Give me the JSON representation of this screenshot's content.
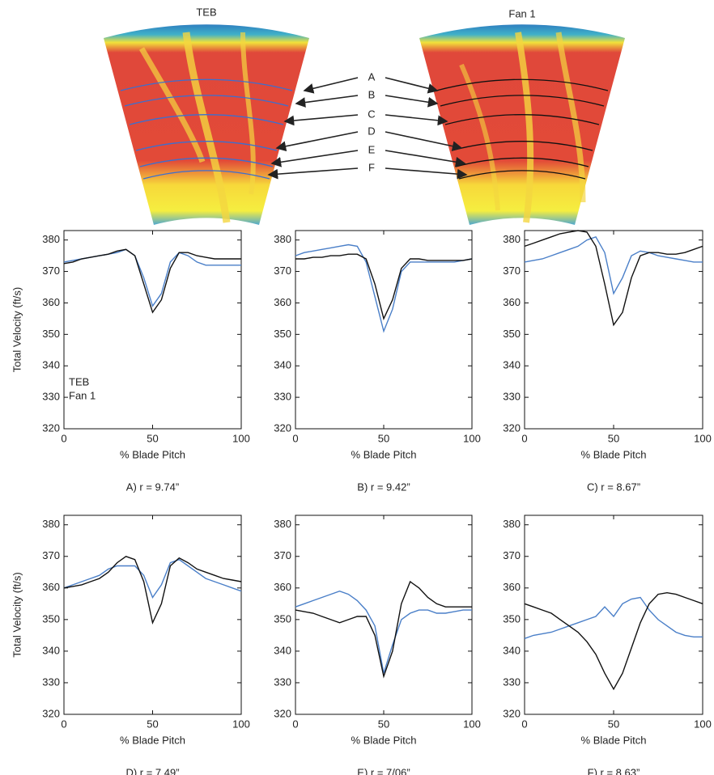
{
  "figure": {
    "left_title": "TEB",
    "right_title": "Fan 1",
    "cut_labels": [
      "A",
      "B",
      "C",
      "D",
      "E",
      "F"
    ]
  },
  "chart_data": [
    {
      "type": "line",
      "y_label": "Total Velocity (ft/s)",
      "x_label": "% Blade Pitch",
      "caption": "A) r = 9.74”",
      "legend": true,
      "x": [
        0,
        5,
        10,
        15,
        20,
        25,
        30,
        35,
        40,
        45,
        50,
        55,
        60,
        65,
        70,
        75,
        80,
        85,
        90,
        95,
        100
      ],
      "series": [
        {
          "name": "TEB",
          "color": "#4a7fc8",
          "values": [
            373,
            373.5,
            374,
            374.5,
            375,
            375.5,
            376,
            377,
            375,
            368,
            359,
            363,
            373,
            376,
            375,
            373,
            372,
            372,
            372,
            372,
            372
          ]
        },
        {
          "name": "Fan 1",
          "color": "#111111",
          "values": [
            372.5,
            373,
            374,
            374.5,
            375,
            375.5,
            376.5,
            377,
            375,
            366,
            357,
            361,
            371,
            376,
            376,
            375,
            374.5,
            374,
            374,
            374,
            374
          ]
        }
      ],
      "xlim": [
        0,
        100
      ],
      "xticks": [
        0,
        50,
        100
      ],
      "ylim": [
        320,
        383
      ],
      "yticks": [
        320,
        330,
        340,
        350,
        360,
        370,
        380
      ]
    },
    {
      "type": "line",
      "x_label": "% Blade Pitch",
      "caption": "B) r = 9.42”",
      "legend": false,
      "x": [
        0,
        5,
        10,
        15,
        20,
        25,
        30,
        35,
        40,
        45,
        50,
        55,
        60,
        65,
        70,
        75,
        80,
        85,
        90,
        95,
        100
      ],
      "series": [
        {
          "color": "#4a7fc8",
          "values": [
            375,
            376,
            376.5,
            377,
            377.5,
            378,
            378.5,
            378,
            373,
            362,
            351,
            358,
            370,
            373,
            373,
            373,
            373,
            373,
            373,
            373.5,
            374
          ]
        },
        {
          "color": "#111111",
          "values": [
            374,
            374,
            374.5,
            374.5,
            375,
            375,
            375.5,
            375.5,
            374,
            366,
            355,
            361,
            371,
            374,
            374,
            373.5,
            373.5,
            373.5,
            373.5,
            373.5,
            374
          ]
        }
      ],
      "xlim": [
        0,
        100
      ],
      "xticks": [
        0,
        50,
        100
      ],
      "ylim": [
        320,
        383
      ],
      "yticks": [
        320,
        330,
        340,
        350,
        360,
        370,
        380
      ]
    },
    {
      "type": "line",
      "x_label": "% Blade Pitch",
      "caption": "C) r = 8.67”",
      "legend": false,
      "x": [
        0,
        5,
        10,
        15,
        20,
        25,
        30,
        35,
        40,
        45,
        50,
        55,
        60,
        65,
        70,
        75,
        80,
        85,
        90,
        95,
        100
      ],
      "series": [
        {
          "color": "#4a7fc8",
          "values": [
            373,
            373.5,
            374,
            375,
            376,
            377,
            378,
            380,
            381,
            376,
            363,
            368,
            375,
            376.5,
            376,
            375,
            374.5,
            374,
            373.5,
            373,
            373
          ]
        },
        {
          "color": "#111111",
          "values": [
            378,
            379,
            380,
            381,
            382,
            382.5,
            383,
            382.5,
            378,
            366,
            353,
            357,
            368,
            375,
            376,
            376,
            375.5,
            375.5,
            376,
            377,
            378
          ]
        }
      ],
      "xlim": [
        0,
        100
      ],
      "xticks": [
        0,
        50,
        100
      ],
      "ylim": [
        320,
        383
      ],
      "yticks": [
        320,
        330,
        340,
        350,
        360,
        370,
        380
      ]
    },
    {
      "type": "line",
      "y_label": "Total Velocity (ft/s)",
      "x_label": "% Blade Pitch",
      "caption": "D) r = 7.49”",
      "legend": false,
      "x": [
        0,
        5,
        10,
        15,
        20,
        25,
        30,
        35,
        40,
        45,
        50,
        55,
        60,
        65,
        70,
        75,
        80,
        85,
        90,
        95,
        100
      ],
      "series": [
        {
          "color": "#4a7fc8",
          "values": [
            360,
            361,
            362,
            363,
            364,
            366,
            367,
            367,
            367,
            364,
            357,
            361,
            368,
            369,
            367,
            365,
            363,
            362,
            361,
            360,
            359
          ]
        },
        {
          "color": "#111111",
          "values": [
            360,
            360.5,
            361,
            362,
            363,
            365,
            368,
            370,
            369,
            362,
            349,
            355,
            367,
            369.5,
            368,
            366,
            365,
            364,
            363,
            362.5,
            362
          ]
        }
      ],
      "xlim": [
        0,
        100
      ],
      "xticks": [
        0,
        50,
        100
      ],
      "ylim": [
        320,
        383
      ],
      "yticks": [
        320,
        330,
        340,
        350,
        360,
        370,
        380
      ]
    },
    {
      "type": "line",
      "x_label": "% Blade Pitch",
      "caption": "E) r = 7/06”",
      "legend": false,
      "x": [
        0,
        5,
        10,
        15,
        20,
        25,
        30,
        35,
        40,
        45,
        50,
        55,
        60,
        65,
        70,
        75,
        80,
        85,
        90,
        95,
        100
      ],
      "series": [
        {
          "color": "#4a7fc8",
          "values": [
            354,
            355,
            356,
            357,
            358,
            359,
            358,
            356,
            353,
            348,
            333,
            342,
            350,
            352,
            353,
            353,
            352,
            352,
            352.5,
            353,
            353
          ]
        },
        {
          "color": "#111111",
          "values": [
            353,
            352.5,
            352,
            351,
            350,
            349,
            350,
            351,
            351,
            345,
            332,
            340,
            355,
            362,
            360,
            357,
            355,
            354,
            354,
            354,
            354
          ]
        }
      ],
      "xlim": [
        0,
        100
      ],
      "xticks": [
        0,
        50,
        100
      ],
      "ylim": [
        320,
        383
      ],
      "yticks": [
        320,
        330,
        340,
        350,
        360,
        370,
        380
      ]
    },
    {
      "type": "line",
      "x_label": "% Blade Pitch",
      "caption": "F) r = 8.63”",
      "legend": false,
      "x": [
        0,
        5,
        10,
        15,
        20,
        25,
        30,
        35,
        40,
        45,
        50,
        55,
        60,
        65,
        70,
        75,
        80,
        85,
        90,
        95,
        100
      ],
      "series": [
        {
          "color": "#4a7fc8",
          "values": [
            344,
            345,
            345.5,
            346,
            347,
            348,
            349,
            350,
            351,
            354,
            351,
            355,
            356.5,
            357,
            353,
            350,
            348,
            346,
            345,
            344.5,
            344.5
          ]
        },
        {
          "color": "#111111",
          "values": [
            355,
            354,
            353,
            352,
            350,
            348,
            346,
            343,
            339,
            333,
            328,
            333,
            341,
            349,
            355,
            358,
            358.5,
            358,
            357,
            356,
            355
          ]
        }
      ],
      "xlim": [
        0,
        100
      ],
      "xticks": [
        0,
        50,
        100
      ],
      "ylim": [
        320,
        383
      ],
      "yticks": [
        320,
        330,
        340,
        350,
        360,
        370,
        380
      ]
    }
  ]
}
